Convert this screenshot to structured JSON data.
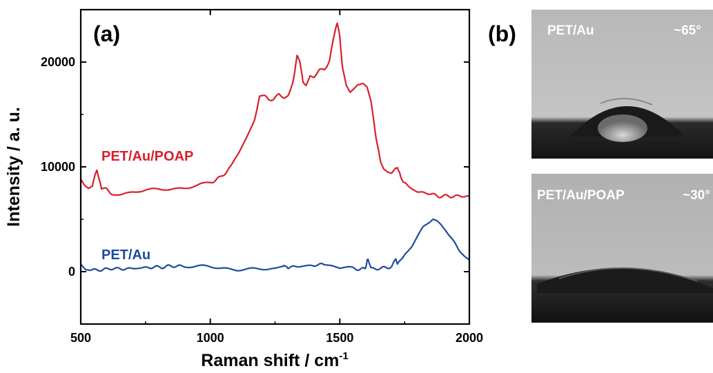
{
  "panel_a_label": "(a)",
  "panel_b_label": "(b)",
  "chart_data": {
    "type": "line",
    "title": "",
    "xlabel_main": "Raman shift / cm",
    "xlabel_sup": "-1",
    "ylabel": "Intensity / a. u.",
    "xlim": [
      500,
      2000
    ],
    "ylim": [
      -5000,
      25000
    ],
    "xticks": [
      500,
      1000,
      1500,
      2000
    ],
    "yticks": [
      0,
      10000,
      20000
    ],
    "grid": false,
    "series": [
      {
        "name": "PET/Au/POAP",
        "color": "#d91e2a",
        "points": [
          [
            500,
            8800
          ],
          [
            515,
            8200
          ],
          [
            530,
            7900
          ],
          [
            545,
            8100
          ],
          [
            555,
            9200
          ],
          [
            562,
            9600
          ],
          [
            570,
            8800
          ],
          [
            580,
            8000
          ],
          [
            600,
            7800
          ],
          [
            620,
            7500
          ],
          [
            650,
            7400
          ],
          [
            700,
            7600
          ],
          [
            750,
            7800
          ],
          [
            800,
            7800
          ],
          [
            850,
            7900
          ],
          [
            900,
            8000
          ],
          [
            950,
            8200
          ],
          [
            1000,
            8500
          ],
          [
            1040,
            9000
          ],
          [
            1080,
            10000
          ],
          [
            1110,
            11200
          ],
          [
            1140,
            12800
          ],
          [
            1170,
            14500
          ],
          [
            1190,
            16700
          ],
          [
            1205,
            16800
          ],
          [
            1225,
            16400
          ],
          [
            1245,
            16500
          ],
          [
            1265,
            16900
          ],
          [
            1285,
            16600
          ],
          [
            1300,
            16900
          ],
          [
            1318,
            18000
          ],
          [
            1335,
            20500
          ],
          [
            1345,
            20200
          ],
          [
            1358,
            18000
          ],
          [
            1370,
            17900
          ],
          [
            1385,
            18800
          ],
          [
            1400,
            18600
          ],
          [
            1420,
            19200
          ],
          [
            1440,
            19300
          ],
          [
            1460,
            20100
          ],
          [
            1480,
            22700
          ],
          [
            1490,
            23700
          ],
          [
            1500,
            22500
          ],
          [
            1510,
            19500
          ],
          [
            1525,
            17800
          ],
          [
            1540,
            17200
          ],
          [
            1555,
            17600
          ],
          [
            1570,
            18000
          ],
          [
            1590,
            17800
          ],
          [
            1605,
            17500
          ],
          [
            1620,
            16200
          ],
          [
            1632,
            14200
          ],
          [
            1645,
            12000
          ],
          [
            1658,
            10500
          ],
          [
            1670,
            9800
          ],
          [
            1685,
            9500
          ],
          [
            1700,
            9400
          ],
          [
            1715,
            9900
          ],
          [
            1722,
            10000
          ],
          [
            1735,
            9000
          ],
          [
            1760,
            8200
          ],
          [
            1800,
            7600
          ],
          [
            1840,
            7500
          ],
          [
            1880,
            7200
          ],
          [
            1920,
            7200
          ],
          [
            1960,
            7200
          ],
          [
            2000,
            7200
          ]
        ]
      },
      {
        "name": "PET/Au",
        "color": "#1d4a9c",
        "points": [
          [
            500,
            700
          ],
          [
            515,
            250
          ],
          [
            540,
            150
          ],
          [
            600,
            200
          ],
          [
            620,
            350
          ],
          [
            640,
            250
          ],
          [
            700,
            300
          ],
          [
            760,
            400
          ],
          [
            820,
            450
          ],
          [
            860,
            550
          ],
          [
            900,
            500
          ],
          [
            950,
            500
          ],
          [
            1000,
            450
          ],
          [
            1050,
            350
          ],
          [
            1100,
            200
          ],
          [
            1150,
            200
          ],
          [
            1200,
            250
          ],
          [
            1250,
            300
          ],
          [
            1280,
            400
          ],
          [
            1290,
            550
          ],
          [
            1300,
            400
          ],
          [
            1340,
            500
          ],
          [
            1400,
            600
          ],
          [
            1440,
            700
          ],
          [
            1470,
            600
          ],
          [
            1500,
            400
          ],
          [
            1550,
            300
          ],
          [
            1590,
            250
          ],
          [
            1600,
            400
          ],
          [
            1606,
            1200
          ],
          [
            1612,
            900
          ],
          [
            1620,
            300
          ],
          [
            1660,
            300
          ],
          [
            1700,
            500
          ],
          [
            1716,
            1100
          ],
          [
            1722,
            800
          ],
          [
            1740,
            1300
          ],
          [
            1760,
            1800
          ],
          [
            1780,
            2500
          ],
          [
            1800,
            3400
          ],
          [
            1820,
            4200
          ],
          [
            1840,
            4700
          ],
          [
            1860,
            4900
          ],
          [
            1875,
            4800
          ],
          [
            1890,
            4500
          ],
          [
            1910,
            3900
          ],
          [
            1930,
            3200
          ],
          [
            1950,
            2500
          ],
          [
            1970,
            1800
          ],
          [
            1985,
            1400
          ],
          [
            2000,
            1100
          ]
        ]
      }
    ]
  },
  "photos": [
    {
      "label": "PET/Au",
      "angle": "~65°"
    },
    {
      "label": "PET/Au/POAP",
      "angle": "~30°"
    }
  ]
}
